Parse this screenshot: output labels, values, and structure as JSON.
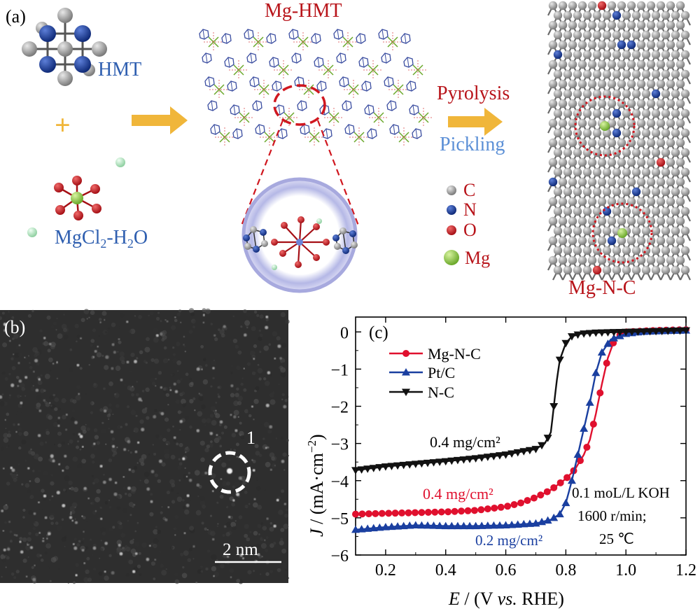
{
  "panel_a": {
    "label": "(a)",
    "hmt_label": "HMT",
    "plus": "+",
    "mgcl_main": "MgCl",
    "mgcl_sub": "2",
    "mgcl_suffix": "-H",
    "mgcl_sub2": "2",
    "mgcl_o": "O",
    "mg_hmt_title": "Mg-HMT",
    "pyrolysis": "Pyrolysis",
    "pickling": "Pickling",
    "legend": [
      {
        "symbol": "C",
        "color": "#8c8c8c"
      },
      {
        "symbol": "N",
        "color": "#1a3f9a"
      },
      {
        "symbol": "O",
        "color": "#c0151b"
      },
      {
        "symbol": "Mg",
        "color": "#8fce3c"
      }
    ],
    "product_label": "Mg-N-C",
    "colors": {
      "red_text": "#b8141a",
      "blue_text": "#2f5fb0",
      "light_blue_text": "#5b8fd6",
      "arrow": "#f0b63a"
    }
  },
  "panel_b": {
    "label": "(b)",
    "marker": "1",
    "scale_bar": "2 nm"
  },
  "panel_c": {
    "label": "(c)",
    "annotations": {
      "nc_loading": "0.4 mg/cm²",
      "mgnc_loading": "0.4 mg/cm²",
      "ptc_loading": "0.2 mg/cm²",
      "cond1": "0.1 moL/L KOH",
      "cond2": "1600 r/min;",
      "cond3": "25 ℃"
    },
    "ylabel_parts": {
      "j": "J",
      "rest": " / (mA·cm",
      "exp": "−2",
      "close": ")"
    },
    "xlabel_parts": {
      "e": "E",
      "rest": " / (V ",
      "vs": "vs.",
      "rhe": " RHE)"
    }
  },
  "chart_data": {
    "type": "line",
    "xlabel": "E / (V vs. RHE)",
    "ylabel": "J / (mA·cm−2)",
    "xlim": [
      0.1,
      1.2
    ],
    "ylim": [
      -6,
      0.4
    ],
    "xticks": [
      "0.2",
      "0.4",
      "0.6",
      "0.8",
      "1.0",
      "1.2"
    ],
    "yticks": [
      "0",
      "−1",
      "−2",
      "−3",
      "−4",
      "−5",
      "−6"
    ],
    "legend_position": "top-left",
    "series": [
      {
        "name": "Mg-N-C",
        "color": "#e0102e",
        "marker": "circle",
        "x": [
          0.1,
          0.2,
          0.3,
          0.4,
          0.5,
          0.6,
          0.65,
          0.7,
          0.75,
          0.8,
          0.83,
          0.86,
          0.88,
          0.9,
          0.92,
          0.94,
          0.96,
          0.98,
          1.0,
          1.05,
          1.1,
          1.2
        ],
        "y": [
          -4.9,
          -4.88,
          -4.86,
          -4.84,
          -4.8,
          -4.7,
          -4.6,
          -4.45,
          -4.25,
          -3.95,
          -3.7,
          -3.3,
          -2.9,
          -2.2,
          -1.4,
          -0.7,
          -0.25,
          -0.08,
          0.0,
          0.02,
          0.04,
          0.06
        ]
      },
      {
        "name": "Pt/C",
        "color": "#1a3fa0",
        "marker": "triangle-up",
        "x": [
          0.1,
          0.2,
          0.3,
          0.4,
          0.5,
          0.6,
          0.7,
          0.75,
          0.78,
          0.8,
          0.82,
          0.84,
          0.86,
          0.88,
          0.9,
          0.92,
          0.95,
          1.0,
          1.05,
          1.1,
          1.2
        ],
        "y": [
          -5.32,
          -5.25,
          -5.2,
          -5.22,
          -5.22,
          -5.2,
          -5.15,
          -5.05,
          -4.9,
          -4.6,
          -4.0,
          -3.3,
          -2.6,
          -1.9,
          -1.1,
          -0.55,
          -0.2,
          -0.05,
          0.0,
          0.02,
          0.04
        ]
      },
      {
        "name": "N-C",
        "color": "#111111",
        "marker": "triangle-down",
        "x": [
          0.1,
          0.2,
          0.3,
          0.4,
          0.5,
          0.6,
          0.7,
          0.73,
          0.75,
          0.76,
          0.77,
          0.78,
          0.8,
          0.82,
          0.85,
          0.9,
          1.0,
          1.1,
          1.2
        ],
        "y": [
          -3.72,
          -3.62,
          -3.55,
          -3.48,
          -3.4,
          -3.3,
          -3.15,
          -3.0,
          -2.7,
          -2.0,
          -1.3,
          -0.75,
          -0.3,
          -0.12,
          -0.05,
          -0.02,
          0.0,
          0.02,
          0.04
        ]
      }
    ]
  }
}
